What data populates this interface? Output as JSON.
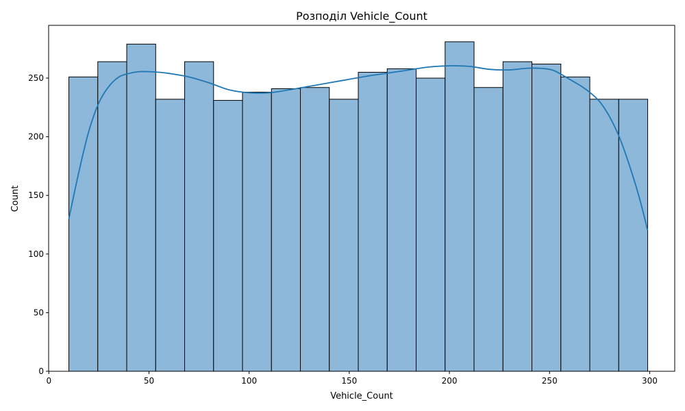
{
  "chart_data": {
    "type": "bar",
    "title": "Розподіл Vehicle_Count",
    "xlabel": "Vehicle_Count",
    "ylabel": "Count",
    "xlim": [
      -0.1,
      312.5
    ],
    "ylim": [
      0,
      295
    ],
    "xticks": [
      0,
      50,
      100,
      150,
      200,
      250,
      300
    ],
    "yticks": [
      0,
      50,
      100,
      150,
      200,
      250
    ],
    "bins": {
      "edges": [
        10,
        24.45,
        38.9,
        53.35,
        67.8,
        82.25,
        96.7,
        111.15,
        125.6,
        140.05,
        154.5,
        168.95,
        183.4,
        197.85,
        212.3,
        226.75,
        241.2,
        255.65,
        270.1,
        284.55,
        299
      ],
      "counts": [
        251,
        264,
        279,
        232,
        264,
        231,
        238,
        241,
        242,
        232,
        255,
        258,
        250,
        281,
        242,
        264,
        262,
        251,
        232,
        232
      ]
    },
    "kde": {
      "x": [
        10,
        15,
        20,
        25,
        30,
        35,
        40,
        45,
        50,
        55,
        60,
        70,
        80,
        90,
        100,
        110,
        120,
        130,
        140,
        150,
        160,
        170,
        180,
        190,
        200,
        210,
        220,
        230,
        240,
        250,
        255,
        260,
        265,
        270,
        275,
        280,
        285,
        290,
        295,
        299
      ],
      "y": [
        130,
        170,
        205,
        229,
        243,
        251,
        254,
        255.5,
        255.5,
        255,
        254,
        251,
        246,
        240,
        237.5,
        237.5,
        240,
        243,
        246,
        249,
        252,
        254.5,
        257,
        259.5,
        260.5,
        260,
        257.5,
        257,
        258.5,
        257.5,
        254,
        249,
        244,
        238,
        230,
        217,
        199,
        175,
        147,
        120
      ]
    },
    "colors": {
      "bar_fill": "#8db8da",
      "bar_edge": "#000000",
      "kde_line": "#1f77b4"
    },
    "grid": false,
    "legend": "none"
  }
}
